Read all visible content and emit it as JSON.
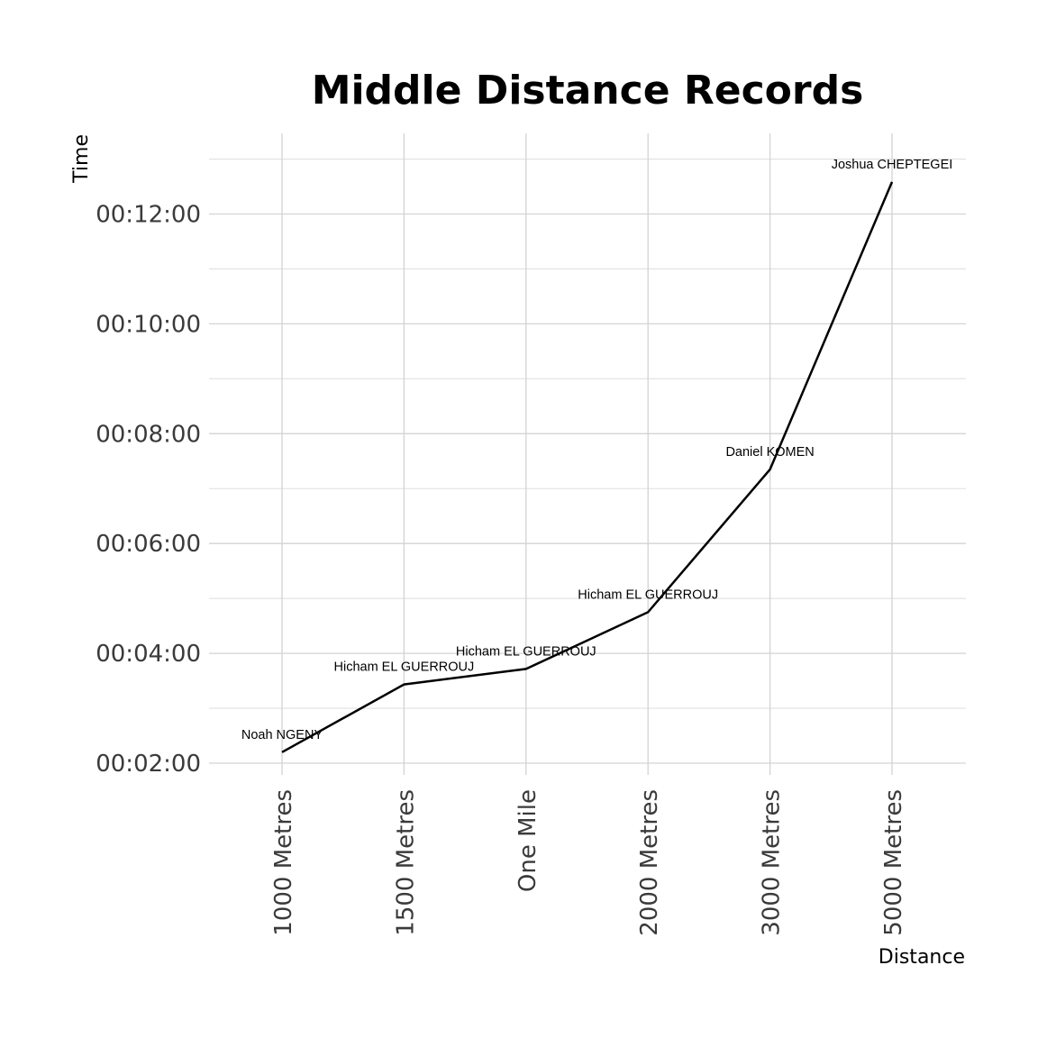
{
  "chart_data": {
    "type": "line",
    "title": "Middle Distance Records",
    "xlabel": "Distance",
    "ylabel": "Time",
    "categories": [
      "1000 Metres",
      "1500 Metres",
      "One Mile",
      "2000 Metres",
      "3000 Metres",
      "5000 Metres"
    ],
    "series": [
      {
        "values_seconds": [
          132,
          206,
          223,
          285,
          441,
          755
        ],
        "labels": [
          "Noah NGENY",
          "Hicham EL GUERROUJ",
          "Hicham EL GUERROUJ",
          "Hicham EL GUERROUJ",
          "Daniel KOMEN",
          "Joshua CHEPTEGEI"
        ]
      }
    ],
    "y_ticks_seconds": [
      120,
      240,
      360,
      480,
      600,
      720
    ],
    "y_tick_labels": [
      "00:02:00",
      "00:04:00",
      "00:06:00",
      "00:08:00",
      "00:10:00",
      "00:12:00"
    ],
    "ylim_seconds": [
      107,
      798
    ],
    "grid": true,
    "line_color": "#000000"
  }
}
